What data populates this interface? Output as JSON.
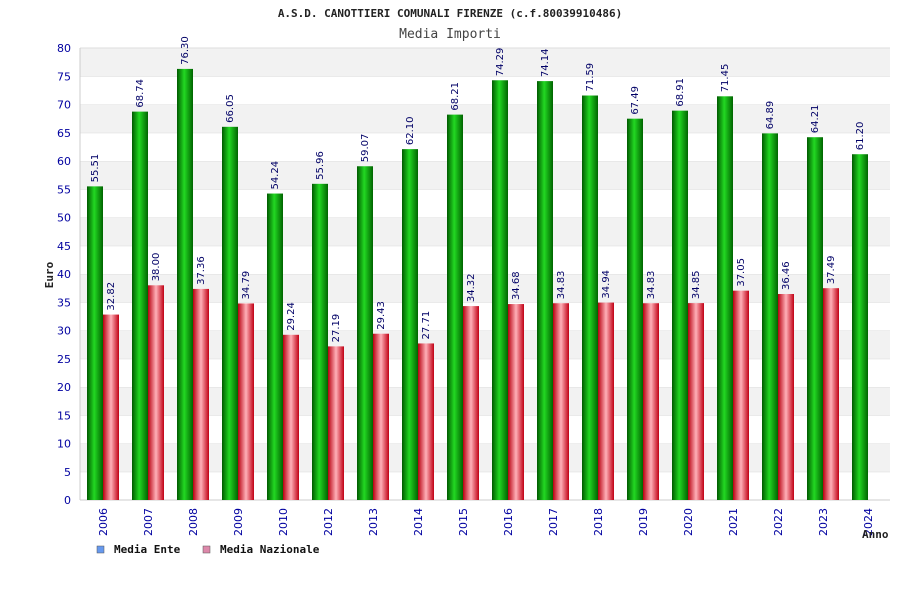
{
  "chart_data": {
    "type": "bar",
    "title": "A.S.D. CANOTTIERI COMUNALI FIRENZE (c.f.80039910486)",
    "subtitle": "Media Importi",
    "ylabel": "Euro",
    "xlabel": "Anno",
    "ylim": [
      0,
      80
    ],
    "ytick_step": 5,
    "categories": [
      "2006",
      "2007",
      "2008",
      "2009",
      "2010",
      "2012",
      "2013",
      "2014",
      "2015",
      "2016",
      "2017",
      "2018",
      "2019",
      "2020",
      "2021",
      "2022",
      "2023",
      "2024"
    ],
    "series": [
      {
        "name": "Media Ente",
        "color": "#00b000",
        "legend_color": "#6699ee",
        "values": [
          55.51,
          68.74,
          76.3,
          66.05,
          54.24,
          55.96,
          59.07,
          62.1,
          68.21,
          74.29,
          74.14,
          71.59,
          67.49,
          68.91,
          71.45,
          64.89,
          64.21,
          61.2
        ],
        "labels": [
          "55.51",
          "68.74",
          "76.30",
          "66.05",
          "54.24",
          "55.96",
          "59.07",
          "62.10",
          "68.21",
          "74.29",
          "74.14",
          "71.59",
          "67.49",
          "68.91",
          "71.45",
          "64.89",
          "64.21",
          "61.20"
        ]
      },
      {
        "name": "Media Nazionale",
        "color": "#e01020",
        "legend_color": "#dd88aa",
        "values": [
          32.82,
          38.0,
          37.36,
          34.79,
          29.24,
          27.19,
          29.43,
          27.71,
          34.32,
          34.68,
          34.83,
          34.94,
          34.83,
          34.85,
          37.05,
          36.46,
          37.49,
          null
        ],
        "labels": [
          "32.82",
          "38.00",
          "37.36",
          "34.79",
          "29.24",
          "27.19",
          "29.43",
          "27.71",
          "34.32",
          "34.68",
          "34.83",
          "34.94",
          "34.83",
          "34.85",
          "37.05",
          "36.46",
          "37.49",
          ""
        ]
      }
    ],
    "legend": [
      "Media Ente",
      "Media Nazionale"
    ],
    "grid": true
  }
}
